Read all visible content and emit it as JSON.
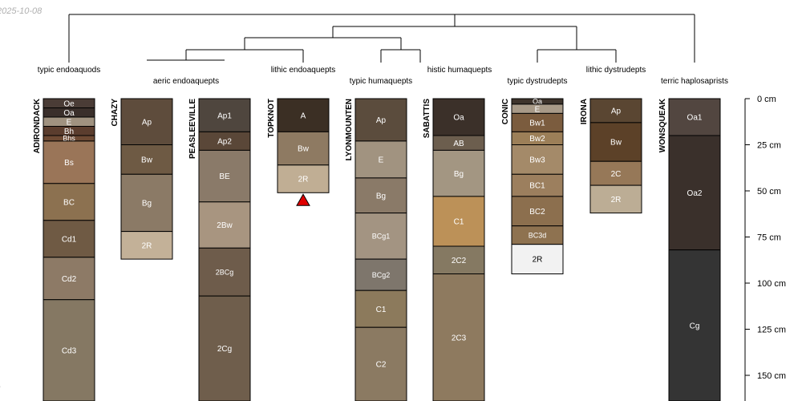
{
  "date_label": "2025-10-08",
  "corner_note": "l",
  "chart_data": {
    "type": "soil-profile-sketch",
    "title": "",
    "depth_units": "cm",
    "ylim": [
      0,
      165
    ],
    "depth_ticks": [
      {
        "value": 0,
        "label": "0 cm"
      },
      {
        "value": 25,
        "label": "25 cm"
      },
      {
        "value": 50,
        "label": "50 cm"
      },
      {
        "value": 75,
        "label": "75 cm"
      },
      {
        "value": 100,
        "label": "100 cm"
      },
      {
        "value": 125,
        "label": "125 cm"
      },
      {
        "value": 150,
        "label": "150 cm"
      }
    ],
    "dendrogram": {
      "leaf_labels": [
        "typic endoaquods",
        "aeric endoaquepts",
        "lithic endoaquepts",
        "typic humaquepts",
        "histic humaquepts",
        "typic dystrudepts",
        "lithic dystrudepts",
        "terric haplosaprists"
      ]
    },
    "profiles": [
      {
        "name": "ADIRONDACK",
        "group": "typic endoaquods",
        "horizons": [
          {
            "name": "Oe",
            "top": 0,
            "bottom": 5,
            "color": "#4a3c36"
          },
          {
            "name": "Oa",
            "top": 5,
            "bottom": 10,
            "color": "#3a2f2b"
          },
          {
            "name": "E",
            "top": 10,
            "bottom": 15,
            "color": "#a09280"
          },
          {
            "name": "Bh",
            "top": 15,
            "bottom": 20,
            "color": "#5b3d2e"
          },
          {
            "name": "Bhs",
            "top": 20,
            "bottom": 23,
            "color": "#6e4a34"
          },
          {
            "name": "Bs",
            "top": 23,
            "bottom": 46,
            "color": "#9a7558"
          },
          {
            "name": "BC",
            "top": 46,
            "bottom": 66,
            "color": "#8c7150"
          },
          {
            "name": "Cd1",
            "top": 66,
            "bottom": 86,
            "color": "#6f5a44"
          },
          {
            "name": "Cd2",
            "top": 86,
            "bottom": 109,
            "color": "#8d7a66"
          },
          {
            "name": "Cd3",
            "top": 109,
            "bottom": 165,
            "color": "#857863"
          }
        ]
      },
      {
        "name": "CHAZY",
        "group": "aeric endoaquepts",
        "horizons": [
          {
            "name": "Ap",
            "top": 0,
            "bottom": 25,
            "color": "#5e4c3c"
          },
          {
            "name": "Bw",
            "top": 25,
            "bottom": 41,
            "color": "#6e5a44"
          },
          {
            "name": "Bg",
            "top": 41,
            "bottom": 72,
            "color": "#8b7a66"
          },
          {
            "name": "2R",
            "top": 72,
            "bottom": 87,
            "color": "#c3b198"
          }
        ]
      },
      {
        "name": "PEASLEEVILLE",
        "group": "aeric endoaquepts",
        "horizons": [
          {
            "name": "Ap1",
            "top": 0,
            "bottom": 18,
            "color": "#4f463e"
          },
          {
            "name": "Ap2",
            "top": 18,
            "bottom": 28,
            "color": "#5a4738"
          },
          {
            "name": "BE",
            "top": 28,
            "bottom": 56,
            "color": "#8a7a69"
          },
          {
            "name": "2Bw",
            "top": 56,
            "bottom": 81,
            "color": "#a89580"
          },
          {
            "name": "2BCg",
            "top": 81,
            "bottom": 107,
            "color": "#6e5c4b"
          },
          {
            "name": "2Cg",
            "top": 107,
            "bottom": 165,
            "color": "#6f5e4c"
          }
        ]
      },
      {
        "name": "TOPKNOT",
        "group": "lithic endoaquepts",
        "lithic_contact": true,
        "horizons": [
          {
            "name": "A",
            "top": 0,
            "bottom": 18,
            "color": "#3b2f24"
          },
          {
            "name": "Bw",
            "top": 18,
            "bottom": 36,
            "color": "#8e7a62"
          },
          {
            "name": "2R",
            "top": 36,
            "bottom": 51,
            "color": "#c0ae94"
          }
        ]
      },
      {
        "name": "LYONMOUNTEN",
        "group": "typic humaquepts",
        "horizons": [
          {
            "name": "Ap",
            "top": 0,
            "bottom": 23,
            "color": "#5b4c3d"
          },
          {
            "name": "E",
            "top": 23,
            "bottom": 43,
            "color": "#a19380"
          },
          {
            "name": "Bg",
            "top": 43,
            "bottom": 62,
            "color": "#8a7a68"
          },
          {
            "name": "BCg1",
            "top": 62,
            "bottom": 87,
            "color": "#a39482"
          },
          {
            "name": "BCg2",
            "top": 87,
            "bottom": 104,
            "color": "#7e766c"
          },
          {
            "name": "C1",
            "top": 104,
            "bottom": 124,
            "color": "#8c7a5c"
          },
          {
            "name": "C2",
            "top": 124,
            "bottom": 165,
            "color": "#8b7a62"
          }
        ]
      },
      {
        "name": "SABATTIS",
        "group": "histic humaquepts",
        "horizons": [
          {
            "name": "Oa",
            "top": 0,
            "bottom": 20,
            "color": "#3b3029"
          },
          {
            "name": "AB",
            "top": 20,
            "bottom": 28,
            "color": "#6c5e4e"
          },
          {
            "name": "Bg",
            "top": 28,
            "bottom": 53,
            "color": "#a39682"
          },
          {
            "name": "C1",
            "top": 53,
            "bottom": 80,
            "color": "#bc9158"
          },
          {
            "name": "2C2",
            "top": 80,
            "bottom": 95,
            "color": "#857962"
          },
          {
            "name": "2C3",
            "top": 95,
            "bottom": 165,
            "color": "#8e7a5f"
          }
        ]
      },
      {
        "name": "CONIC",
        "group": "typic dystrudepts",
        "horizons": [
          {
            "name": "Oa",
            "top": 0,
            "bottom": 3,
            "color": "#3e342c"
          },
          {
            "name": "E",
            "top": 3,
            "bottom": 8,
            "color": "#a89a88"
          },
          {
            "name": "Bw1",
            "top": 8,
            "bottom": 18,
            "color": "#7b5c3e"
          },
          {
            "name": "Bw2",
            "top": 18,
            "bottom": 25,
            "color": "#9c7f58"
          },
          {
            "name": "Bw3",
            "top": 25,
            "bottom": 41,
            "color": "#a48a69"
          },
          {
            "name": "BC1",
            "top": 41,
            "bottom": 53,
            "color": "#9c7f5e"
          },
          {
            "name": "BC2",
            "top": 53,
            "bottom": 69,
            "color": "#8c6f4e"
          },
          {
            "name": "BC3d",
            "top": 69,
            "bottom": 79,
            "color": "#8e7250"
          },
          {
            "name": "2R",
            "top": 79,
            "bottom": 95,
            "color": "#f2f2f2"
          }
        ]
      },
      {
        "name": "IRONA",
        "group": "lithic dystrudepts",
        "horizons": [
          {
            "name": "Ap",
            "top": 0,
            "bottom": 13,
            "color": "#5a4632"
          },
          {
            "name": "Bw",
            "top": 13,
            "bottom": 34,
            "color": "#5c4128"
          },
          {
            "name": "2C",
            "top": 34,
            "bottom": 47,
            "color": "#967858"
          },
          {
            "name": "2R",
            "top": 47,
            "bottom": 62,
            "color": "#bcad95"
          }
        ]
      },
      {
        "name": "WONSQUEAK",
        "group": "terric haplosaprists",
        "horizons": [
          {
            "name": "Oa1",
            "top": 0,
            "bottom": 20,
            "color": "#524640"
          },
          {
            "name": "Oa2",
            "top": 20,
            "bottom": 82,
            "color": "#3a302b"
          },
          {
            "name": "Cg",
            "top": 82,
            "bottom": 165,
            "color": "#343434"
          }
        ]
      }
    ]
  }
}
